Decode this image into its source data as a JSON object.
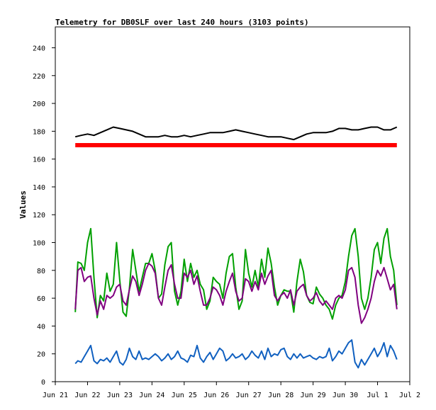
{
  "chart_data": {
    "type": "line",
    "title": "Telemetry for DB0SLF over last 240 hours (3103 points)",
    "xlabel": "",
    "ylabel": "Values",
    "xlim": [
      0,
      11
    ],
    "ylim": [
      0,
      255
    ],
    "x_ticks": [
      {
        "x": 0,
        "label": "Jun 21"
      },
      {
        "x": 1,
        "label": "Jun 22"
      },
      {
        "x": 2,
        "label": "Jun 23"
      },
      {
        "x": 3,
        "label": "Jun 24"
      },
      {
        "x": 4,
        "label": "Jun 25"
      },
      {
        "x": 5,
        "label": "Jun 26"
      },
      {
        "x": 6,
        "label": "Jun 27"
      },
      {
        "x": 7,
        "label": "Jun 28"
      },
      {
        "x": 8,
        "label": "Jun 29"
      },
      {
        "x": 9,
        "label": "Jun 30"
      },
      {
        "x": 10,
        "label": "Jul 1"
      },
      {
        "x": 11,
        "label": "Jul 2"
      }
    ],
    "y_ticks": [
      0,
      20,
      40,
      60,
      80,
      100,
      120,
      140,
      160,
      180,
      200,
      220,
      240
    ],
    "grid": false,
    "series": [
      {
        "color": "#000000",
        "x": [
          0.62,
          0.8,
          1.0,
          1.2,
          1.4,
          1.6,
          1.8,
          2.0,
          2.2,
          2.4,
          2.6,
          2.8,
          3.0,
          3.2,
          3.4,
          3.6,
          3.8,
          4.0,
          4.2,
          4.4,
          4.6,
          4.8,
          5.0,
          5.2,
          5.4,
          5.6,
          5.8,
          6.0,
          6.2,
          6.4,
          6.6,
          6.8,
          7.0,
          7.2,
          7.4,
          7.6,
          7.8,
          8.0,
          8.2,
          8.4,
          8.6,
          8.8,
          9.0,
          9.2,
          9.4,
          9.6,
          9.8,
          10.0,
          10.2,
          10.4,
          10.6
        ],
        "values": [
          176,
          177,
          178,
          177,
          179,
          181,
          183,
          182,
          181,
          180,
          178,
          176,
          176,
          176,
          177,
          176,
          176,
          177,
          176,
          177,
          178,
          179,
          179,
          179,
          180,
          181,
          180,
          179,
          178,
          177,
          176,
          176,
          176,
          175,
          174,
          176,
          178,
          179,
          179,
          179,
          180,
          182,
          182,
          181,
          181,
          182,
          183,
          183,
          181,
          181,
          183
        ]
      },
      {
        "color": "#ff0000",
        "x": [
          0.62,
          1.0,
          2.0,
          3.0,
          4.0,
          5.0,
          6.0,
          7.0,
          8.0,
          9.0,
          10.0,
          10.6
        ],
        "values": [
          170,
          170,
          170,
          170,
          170,
          170,
          170,
          170,
          170,
          170,
          170,
          170
        ]
      },
      {
        "color": "#00a000",
        "x": [
          0.62,
          0.7,
          0.8,
          0.9,
          1.0,
          1.1,
          1.2,
          1.3,
          1.4,
          1.5,
          1.6,
          1.7,
          1.8,
          1.9,
          2.0,
          2.1,
          2.2,
          2.3,
          2.4,
          2.5,
          2.6,
          2.7,
          2.8,
          2.9,
          3.0,
          3.1,
          3.2,
          3.3,
          3.4,
          3.5,
          3.6,
          3.7,
          3.8,
          3.9,
          4.0,
          4.1,
          4.2,
          4.3,
          4.4,
          4.5,
          4.6,
          4.7,
          4.8,
          4.9,
          5.0,
          5.1,
          5.2,
          5.3,
          5.4,
          5.5,
          5.6,
          5.7,
          5.8,
          5.9,
          6.0,
          6.1,
          6.2,
          6.3,
          6.4,
          6.5,
          6.6,
          6.7,
          6.8,
          6.9,
          7.0,
          7.1,
          7.2,
          7.3,
          7.4,
          7.5,
          7.6,
          7.7,
          7.8,
          7.9,
          8.0,
          8.1,
          8.2,
          8.3,
          8.4,
          8.5,
          8.6,
          8.7,
          8.8,
          8.9,
          9.0,
          9.1,
          9.2,
          9.3,
          9.4,
          9.5,
          9.6,
          9.7,
          9.8,
          9.9,
          10.0,
          10.1,
          10.2,
          10.3,
          10.4,
          10.5,
          10.6
        ],
        "values": [
          50,
          86,
          85,
          80,
          100,
          110,
          75,
          46,
          62,
          58,
          78,
          65,
          70,
          100,
          73,
          50,
          47,
          67,
          95,
          80,
          65,
          75,
          85,
          85,
          92,
          80,
          60,
          63,
          84,
          97,
          100,
          65,
          55,
          65,
          88,
          72,
          85,
          75,
          80,
          70,
          66,
          52,
          58,
          75,
          72,
          70,
          60,
          78,
          90,
          92,
          68,
          52,
          58,
          95,
          78,
          68,
          80,
          68,
          88,
          75,
          96,
          85,
          68,
          55,
          62,
          66,
          65,
          65,
          50,
          72,
          88,
          79,
          62,
          57,
          56,
          68,
          63,
          60,
          55,
          52,
          45,
          55,
          60,
          62,
          72,
          90,
          105,
          110,
          90,
          60,
          52,
          60,
          75,
          95,
          100,
          85,
          103,
          110,
          90,
          80,
          55
        ]
      },
      {
        "color": "#800080",
        "x": [
          0.62,
          0.7,
          0.8,
          0.9,
          1.0,
          1.1,
          1.2,
          1.3,
          1.4,
          1.5,
          1.6,
          1.7,
          1.8,
          1.9,
          2.0,
          2.1,
          2.2,
          2.3,
          2.4,
          2.5,
          2.6,
          2.7,
          2.8,
          2.9,
          3.0,
          3.1,
          3.2,
          3.3,
          3.4,
          3.5,
          3.6,
          3.7,
          3.8,
          3.9,
          4.0,
          4.1,
          4.2,
          4.3,
          4.4,
          4.5,
          4.6,
          4.7,
          4.8,
          4.9,
          5.0,
          5.1,
          5.2,
          5.3,
          5.4,
          5.5,
          5.6,
          5.7,
          5.8,
          5.9,
          6.0,
          6.1,
          6.2,
          6.3,
          6.4,
          6.5,
          6.6,
          6.7,
          6.8,
          6.9,
          7.0,
          7.1,
          7.2,
          7.3,
          7.4,
          7.5,
          7.6,
          7.7,
          7.8,
          7.9,
          8.0,
          8.1,
          8.2,
          8.3,
          8.4,
          8.5,
          8.6,
          8.7,
          8.8,
          8.9,
          9.0,
          9.1,
          9.2,
          9.3,
          9.4,
          9.5,
          9.6,
          9.7,
          9.8,
          9.9,
          10.0,
          10.1,
          10.2,
          10.3,
          10.4,
          10.5,
          10.6
        ],
        "values": [
          52,
          80,
          82,
          72,
          75,
          76,
          60,
          48,
          58,
          52,
          62,
          60,
          62,
          68,
          70,
          58,
          55,
          66,
          76,
          72,
          62,
          70,
          80,
          85,
          83,
          78,
          60,
          55,
          68,
          80,
          84,
          70,
          60,
          60,
          78,
          75,
          80,
          70,
          76,
          65,
          55,
          55,
          60,
          68,
          66,
          62,
          55,
          65,
          72,
          78,
          65,
          58,
          60,
          74,
          72,
          65,
          72,
          66,
          78,
          70,
          76,
          80,
          62,
          58,
          62,
          64,
          60,
          66,
          55,
          65,
          68,
          70,
          62,
          58,
          60,
          64,
          58,
          55,
          58,
          55,
          52,
          60,
          62,
          60,
          66,
          80,
          82,
          75,
          55,
          42,
          46,
          52,
          60,
          72,
          80,
          76,
          82,
          74,
          66,
          70,
          52
        ]
      },
      {
        "color": "#1060c0",
        "x": [
          0.62,
          0.7,
          0.8,
          0.9,
          1.0,
          1.1,
          1.2,
          1.3,
          1.4,
          1.5,
          1.6,
          1.7,
          1.8,
          1.9,
          2.0,
          2.1,
          2.2,
          2.3,
          2.4,
          2.5,
          2.6,
          2.7,
          2.8,
          2.9,
          3.0,
          3.1,
          3.2,
          3.3,
          3.4,
          3.5,
          3.6,
          3.7,
          3.8,
          3.9,
          4.0,
          4.1,
          4.2,
          4.3,
          4.4,
          4.5,
          4.6,
          4.7,
          4.8,
          4.9,
          5.0,
          5.1,
          5.2,
          5.3,
          5.4,
          5.5,
          5.6,
          5.7,
          5.8,
          5.9,
          6.0,
          6.1,
          6.2,
          6.3,
          6.4,
          6.5,
          6.6,
          6.7,
          6.8,
          6.9,
          7.0,
          7.1,
          7.2,
          7.3,
          7.4,
          7.5,
          7.6,
          7.7,
          7.8,
          7.9,
          8.0,
          8.1,
          8.2,
          8.3,
          8.4,
          8.5,
          8.6,
          8.7,
          8.8,
          8.9,
          9.0,
          9.1,
          9.2,
          9.3,
          9.4,
          9.5,
          9.6,
          9.7,
          9.8,
          9.9,
          10.0,
          10.1,
          10.2,
          10.3,
          10.4,
          10.5,
          10.6
        ],
        "values": [
          13,
          15,
          14,
          18,
          22,
          26,
          15,
          13,
          16,
          15,
          17,
          14,
          18,
          22,
          14,
          12,
          16,
          24,
          18,
          16,
          22,
          16,
          17,
          16,
          18,
          20,
          18,
          15,
          17,
          20,
          16,
          18,
          22,
          17,
          16,
          14,
          19,
          18,
          26,
          17,
          14,
          18,
          21,
          16,
          20,
          24,
          22,
          15,
          17,
          20,
          17,
          18,
          20,
          16,
          18,
          22,
          19,
          17,
          22,
          16,
          24,
          18,
          20,
          19,
          23,
          24,
          18,
          16,
          20,
          17,
          20,
          17,
          18,
          19,
          17,
          16,
          18,
          17,
          18,
          24,
          15,
          18,
          22,
          20,
          24,
          28,
          30,
          14,
          10,
          16,
          12,
          16,
          20,
          24,
          18,
          22,
          28,
          18,
          26,
          22,
          16
        ]
      }
    ]
  }
}
